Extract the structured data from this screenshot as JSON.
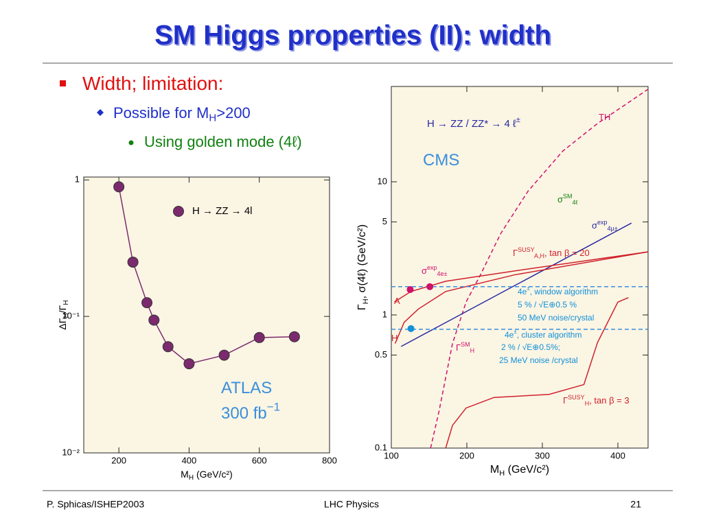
{
  "title": "SM Higgs properties (II): width",
  "bullets": [
    {
      "text": "Width; limitation:",
      "color": "#e01010"
    },
    {
      "text": "Possible for M",
      "sub": "H",
      "rest": ">200",
      "color": "#2030c8"
    },
    {
      "text": "Using golden mode (4ℓ)",
      "color": "#108010"
    }
  ],
  "footer": {
    "left": "P. Sphicas/ISHEP2003",
    "center": "LHC Physics",
    "right": "21"
  },
  "chart_data": [
    {
      "type": "line",
      "xlabel": {
        "text": "M",
        "sub": "H",
        "rest": " (GeV/c²)"
      },
      "ylabel": {
        "text": "ΔΓ",
        "sub": "H",
        "rest": "/Γ",
        "sub2": "H"
      },
      "xlim": [
        100,
        800
      ],
      "xticks": [
        200,
        400,
        600,
        800
      ],
      "ylim": [
        0.01,
        1.05
      ],
      "yscale": "log",
      "yticks": [
        1,
        {
          "value": 0.1,
          "label": "10⁻¹"
        },
        {
          "value": 0.01,
          "label": "10⁻²"
        }
      ],
      "legend": "upper right",
      "series": [
        {
          "name": "H → ZZ → 4l",
          "color": "#7b2a6e",
          "markers": true,
          "x": [
            200,
            240,
            280,
            300,
            340,
            400,
            500,
            600,
            700
          ],
          "values": [
            0.89,
            0.25,
            0.126,
            0.094,
            0.06,
            0.045,
            0.052,
            0.07,
            0.071
          ]
        }
      ],
      "annotations": [
        {
          "text": "ATLAS",
          "color": "#3a8fdc"
        },
        {
          "text": "300 fb",
          "sup": "−1",
          "color": "#3a8fdc"
        }
      ]
    },
    {
      "type": "line",
      "xlabel": {
        "text": "M",
        "sub": "H",
        "rest": " (GeV/c²)"
      },
      "ylabel": {
        "text": "Γ",
        "sub": "H",
        "rest": ", σ(4ℓ) (GeV/c²)"
      },
      "xlim": [
        100,
        440
      ],
      "xticks": [
        100,
        200,
        300,
        400
      ],
      "ylim": [
        0.1,
        52
      ],
      "yscale": "log",
      "yticks": [
        0.1,
        0.5,
        1,
        5,
        10
      ],
      "series": [
        {
          "color": "#d0106a",
          "dash": true,
          "x": [
            152,
            163,
            181,
            199,
            218,
            245,
            281,
            327,
            373,
            440
          ],
          "values": [
            0.1,
            0.187,
            0.61,
            1.25,
            2.0,
            4.1,
            8.5,
            17,
            27.4,
            49.6
          ]
        },
        {
          "color": "#2a2aa0",
          "x": [
            113,
            418
          ],
          "values": [
            0.58,
            4.9
          ]
        },
        {
          "color": "#d0202a",
          "x": [
            104,
            126,
            172,
            263,
            440
          ],
          "values": [
            1.25,
            1.5,
            1.79,
            2.14,
            2.98
          ]
        },
        {
          "color": "#d0202a",
          "x": [
            105,
            117,
            136,
            172,
            263,
            440
          ],
          "values": [
            0.61,
            0.88,
            1.11,
            1.5,
            2.0,
            2.98
          ]
        },
        {
          "color": "#d0202a",
          "x": [
            172,
            181,
            199,
            236,
            309,
            355,
            373,
            400,
            414
          ],
          "values": [
            0.1,
            0.148,
            0.2,
            0.24,
            0.253,
            0.3,
            0.62,
            1.25,
            1.35
          ]
        },
        {
          "color": "#3a8fdc",
          "dash": true,
          "x": [
            100,
            440
          ],
          "values": [
            1.63,
            1.63
          ]
        },
        {
          "color": "#3a8fdc",
          "dash": true,
          "x": [
            100,
            440
          ],
          "values": [
            0.78,
            0.78
          ]
        },
        {
          "color": "#d0106a",
          "markers": true,
          "x": [
            125,
            151
          ],
          "values": [
            1.55,
            1.63
          ]
        },
        {
          "color": "#1090d8",
          "markers": true,
          "x": [
            126
          ],
          "values": [
            0.79
          ]
        }
      ],
      "annotations": [
        {
          "text": "H → ZZ / ZZ* → 4 ℓ",
          "sup": "±",
          "color": "#2a2aa0"
        },
        {
          "text": "TH",
          "color": "#d0106a"
        },
        {
          "text": "CMS",
          "color": "#3a8fdc"
        },
        {
          "text": "σ",
          "sup": "SM",
          "sub": "4ℓ",
          "color": "#108010"
        },
        {
          "text": "σ",
          "sup": "exp",
          "sub": "4μ±",
          "color": "#2a2aa0"
        },
        {
          "text": "Γ",
          "sup": "SUSY",
          "sub": "A,H",
          "rest": ", tan β = 20",
          "color": "#d0202a"
        },
        {
          "text": "σ",
          "sup": "exp",
          "sub": "4e±",
          "color": "#d0106a"
        },
        {
          "text": "A",
          "color": "#d0202a"
        },
        {
          "text": "H",
          "color": "#d0202a"
        },
        {
          "text": "Γ",
          "sup": "SM",
          "sub": "H",
          "color": "#d0106a"
        },
        {
          "text": "4e",
          "sup": "±",
          "rest": ", window algorithm",
          "color": "#1090d8"
        },
        {
          "text": "5 % / √E⊕0.5 %",
          "color": "#1090d8"
        },
        {
          "text": "50 MeV noise/crystal",
          "color": "#1090d8"
        },
        {
          "text": "4e",
          "sup": "±",
          "rest": ", cluster algorithm",
          "color": "#1090d8"
        },
        {
          "text": "2 % / √E⊕0.5%;",
          "color": "#1090d8"
        },
        {
          "text": "25 MeV noise /crystal",
          "color": "#1090d8"
        },
        {
          "text": "Γ",
          "sup": "SUSY",
          "sub": "H",
          "rest": ", tan β = 3",
          "color": "#d0202a"
        }
      ]
    }
  ]
}
